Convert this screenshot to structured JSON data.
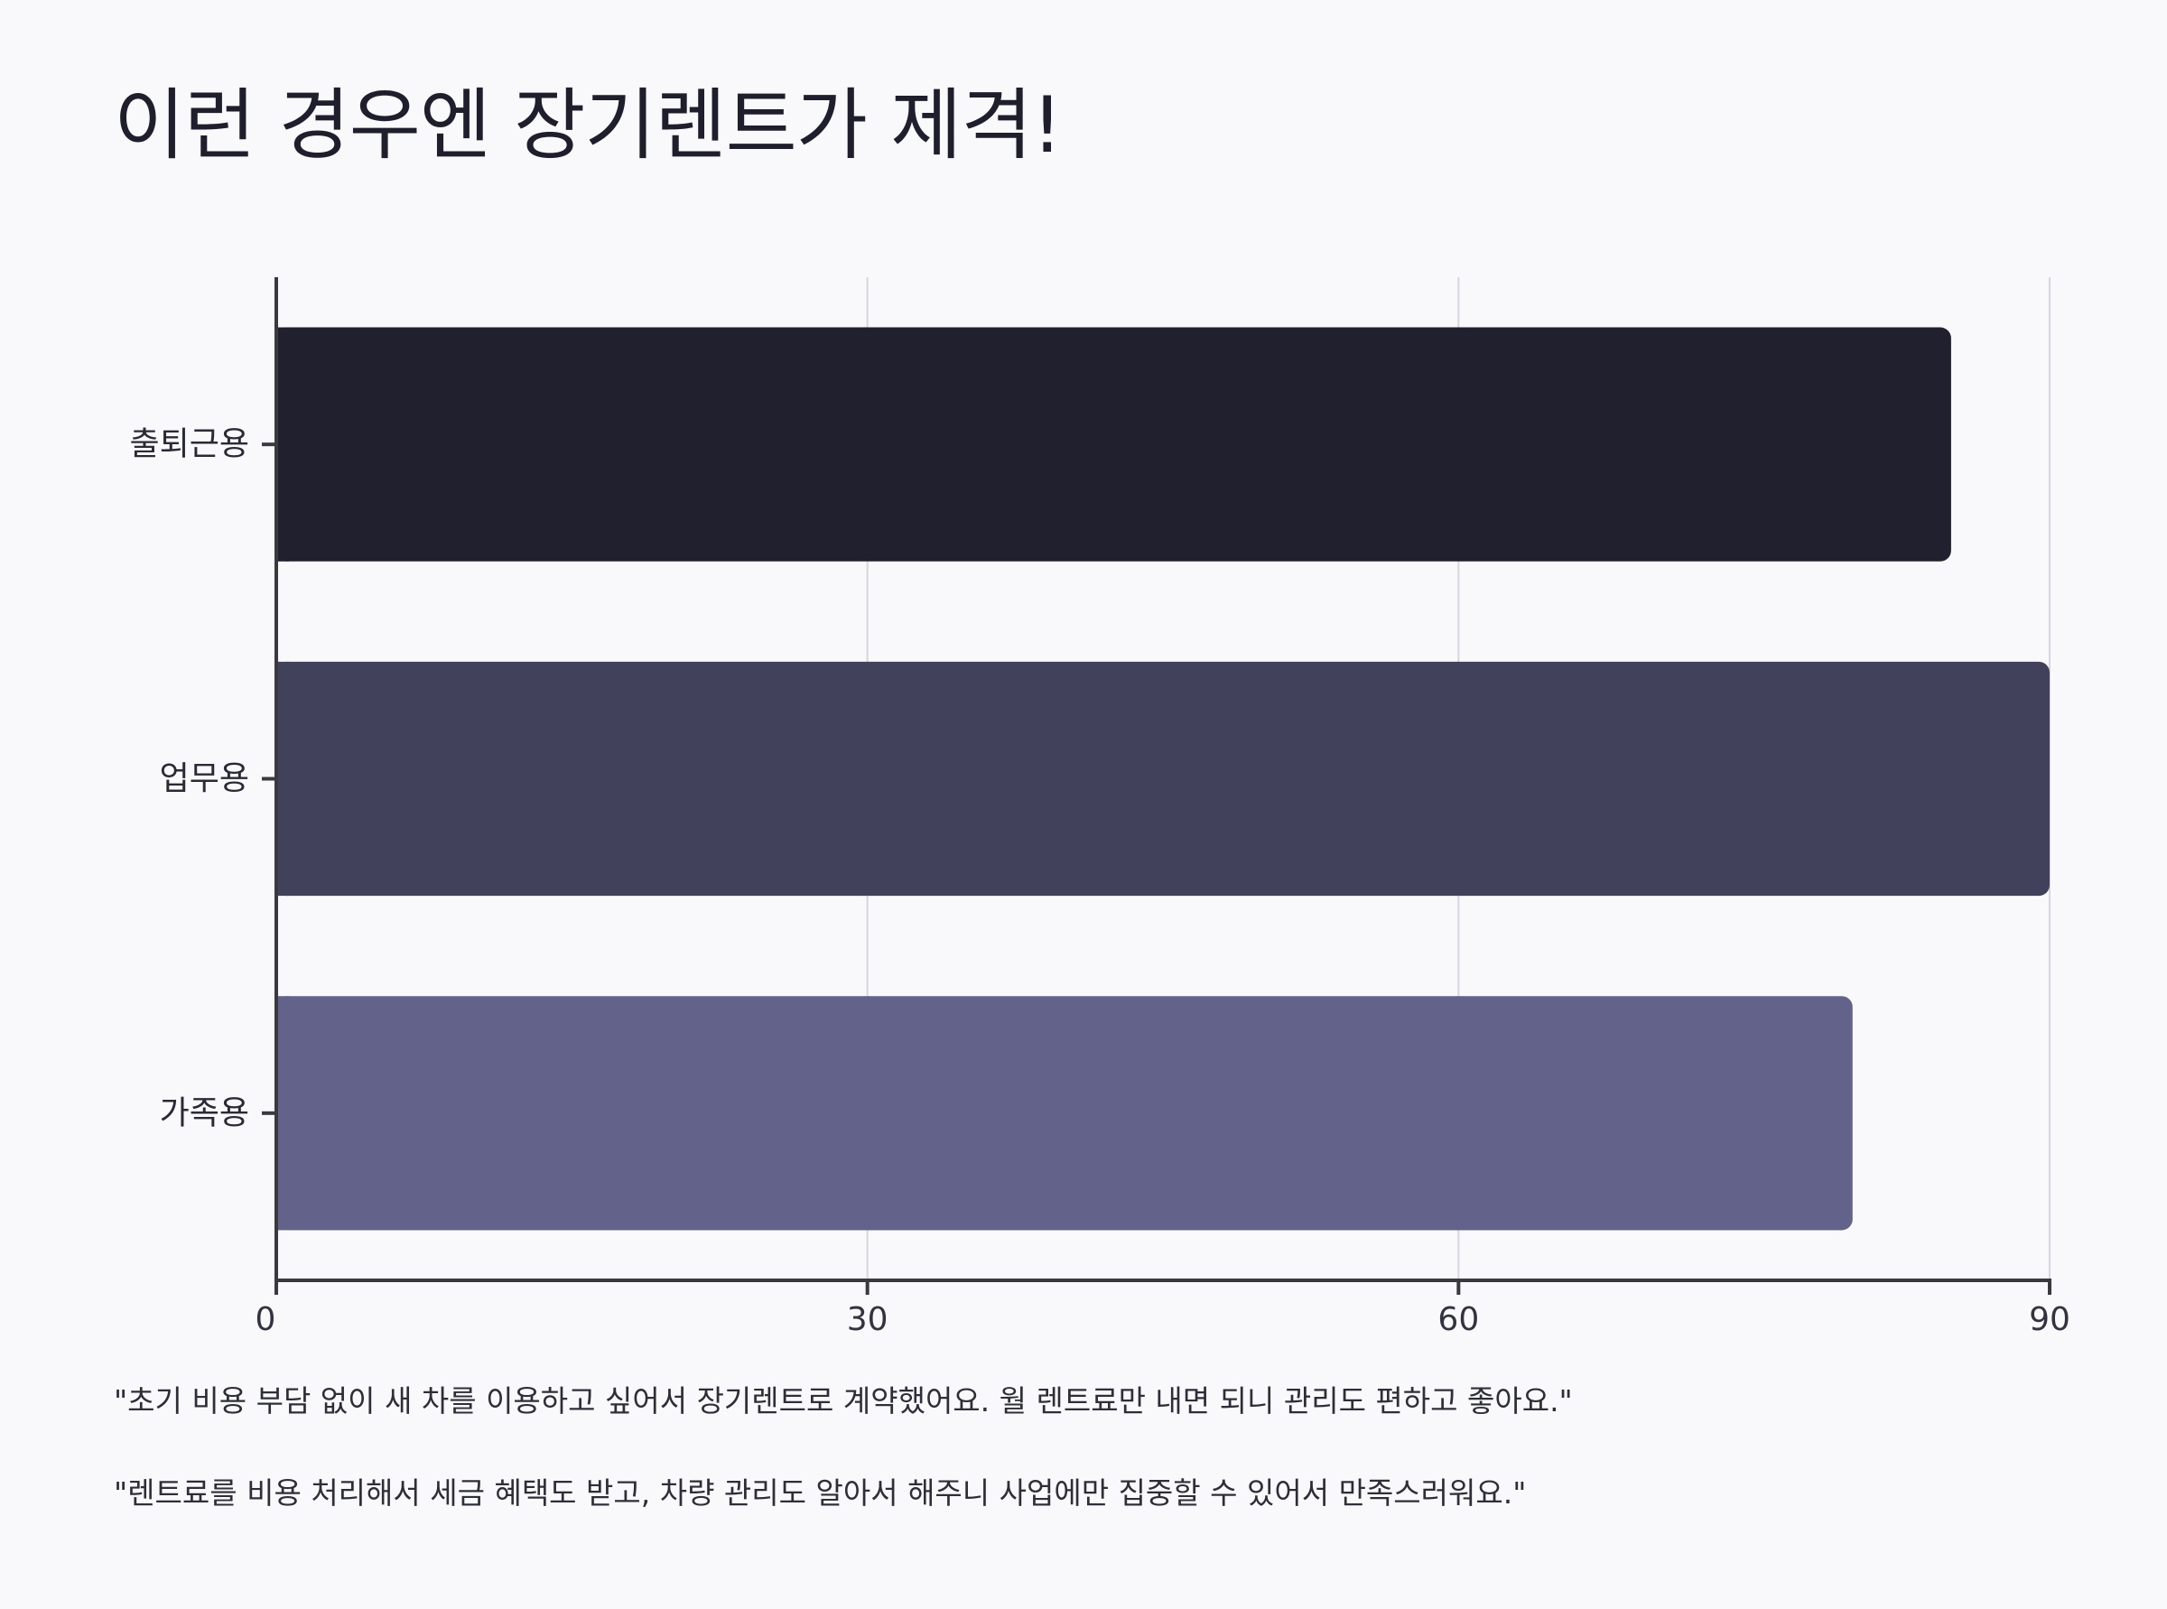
{
  "chart_data": {
    "type": "bar",
    "orientation": "horizontal",
    "title": "이런 경우엔 장기렌트가 제격!",
    "categories": [
      "출퇴근용",
      "업무용",
      "가족용"
    ],
    "values": [
      85,
      90,
      80
    ],
    "colors": [
      "#20202e",
      "#41415c",
      "#63628a"
    ],
    "xlim": [
      0,
      90
    ],
    "xticks": [
      "0",
      "30",
      "60",
      "90"
    ],
    "xtick_values": [
      0,
      30,
      60,
      90
    ],
    "grid": "vertical",
    "grid_color": "#d6d6dc",
    "axis_color": "#3a3a3e",
    "xlabel": "",
    "ylabel": ""
  },
  "quotes": [
    "\"초기 비용 부담 없이 새 차를 이용하고 싶어서 장기렌트로 계약했어요. 월 렌트료만 내면 되니 관리도 편하고 좋아요.\"",
    "\"렌트료를 비용 처리해서 세금 혜택도 받고, 차량 관리도 알아서 해주니 사업에만 집중할 수 있어서 만족스러워요.\""
  ]
}
